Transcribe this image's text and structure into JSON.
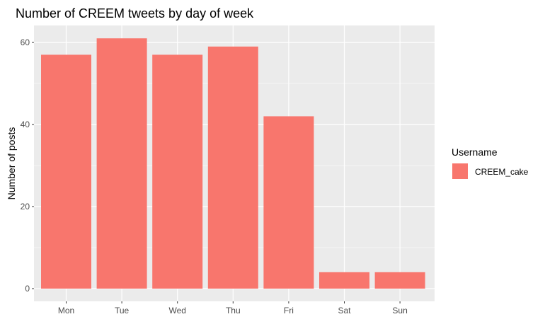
{
  "chart_data": {
    "type": "bar",
    "title": "Number of CREEM tweets by day of week",
    "xlabel": "",
    "ylabel": "Number of posts",
    "categories": [
      "Mon",
      "Tue",
      "Wed",
      "Thu",
      "Fri",
      "Sat",
      "Sun"
    ],
    "series": [
      {
        "name": "CREEM_cake",
        "color": "#F8766D",
        "values": [
          57,
          61,
          57,
          59,
          42,
          4,
          4
        ]
      }
    ],
    "ylim": [
      0,
      64
    ],
    "yticks": [
      0,
      20,
      40,
      60
    ],
    "yticks_labels": [
      "0",
      "20",
      "40",
      "60"
    ],
    "grid": true,
    "legend": {
      "title": "Username",
      "position": "right",
      "entries": [
        "CREEM_cake"
      ]
    },
    "panel_background": "#EBEBEB",
    "gridline_color": "#FFFFFF"
  }
}
